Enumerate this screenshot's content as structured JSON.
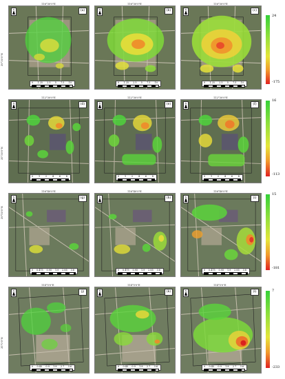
{
  "rows": [
    {
      "legend": {
        "max": "24",
        "min": "-175"
      },
      "panels": [
        {
          "label": "(a)",
          "top_coord": "116°30'0\"E",
          "scale": [
            "0",
            "1.25",
            "2.5",
            "5",
            "7.5",
            "10"
          ]
        },
        {
          "label": "(b)",
          "top_coord": "116°30'0\"E",
          "scale": [
            "0",
            "1.25",
            "2.5",
            "5",
            "7.5",
            "10"
          ]
        },
        {
          "label": "(c)",
          "top_coord": "116°30'0\"E",
          "scale": [
            "0",
            "1.25",
            "2.5",
            "5",
            "7.5",
            "10"
          ]
        }
      ],
      "side_coord": "39°30'0\"N"
    },
    {
      "legend": {
        "max": "16",
        "min": "-113"
      },
      "panels": [
        {
          "label": "(d)",
          "top_coord": "112°30'0\"E",
          "scale": [
            "0",
            "1",
            "2",
            "4",
            "6",
            "8"
          ]
        },
        {
          "label": "(e)",
          "top_coord": "112°30'0\"E",
          "scale": [
            "0",
            "1",
            "2",
            "4",
            "6",
            "8"
          ]
        },
        {
          "label": "(f)",
          "top_coord": "112°30'0\"E",
          "scale": [
            "0",
            "1",
            "2",
            "4",
            "6",
            "8"
          ]
        }
      ],
      "side_coord": "35°30'0\"N"
    },
    {
      "legend": {
        "max": "15",
        "min": "-181"
      },
      "panels": [
        {
          "label": "(g)",
          "top_coord": "116°40'0\"E",
          "scale": [
            "0",
            "0.475",
            "0.95",
            "1.9",
            "2.85",
            "3.8"
          ]
        },
        {
          "label": "(h)",
          "top_coord": "116°40'0\"E",
          "scale": [
            "0",
            "0.475",
            "0.95",
            "1.9",
            "2.85",
            "3.8"
          ]
        },
        {
          "label": "(i)",
          "top_coord": "116°40'0\"E",
          "scale": [
            "0",
            "0.475",
            "0.95",
            "1.9",
            "2.85",
            "3.8"
          ]
        }
      ],
      "side_coord": "39°50'0\"N"
    },
    {
      "legend": {
        "max": "7",
        "min": "-233"
      },
      "panels": [
        {
          "label": "(j)",
          "top_coord": "114°5'0\"E",
          "scale": [
            "0",
            "0.45",
            "0.9",
            "1.8",
            "2.7",
            "3.6"
          ]
        },
        {
          "label": "(k)",
          "top_coord": "114°5'0\"E",
          "scale": [
            "0",
            "0.45",
            "0.9",
            "1.8",
            "2.7",
            "3.6"
          ]
        },
        {
          "label": "(l)",
          "top_coord": "114°5'0\"E",
          "scale": [
            "0",
            "0.45",
            "0.9",
            "1.8",
            "2.7",
            "3.6"
          ]
        }
      ],
      "side_coord": "35°0'0\"N"
    }
  ],
  "colors": {
    "imagery_base": "#6d7a5a",
    "imagery_urban": "#b8aa98",
    "stable": "#3fd23a",
    "mid": "#e8e33a",
    "high": "#e02a1e"
  }
}
